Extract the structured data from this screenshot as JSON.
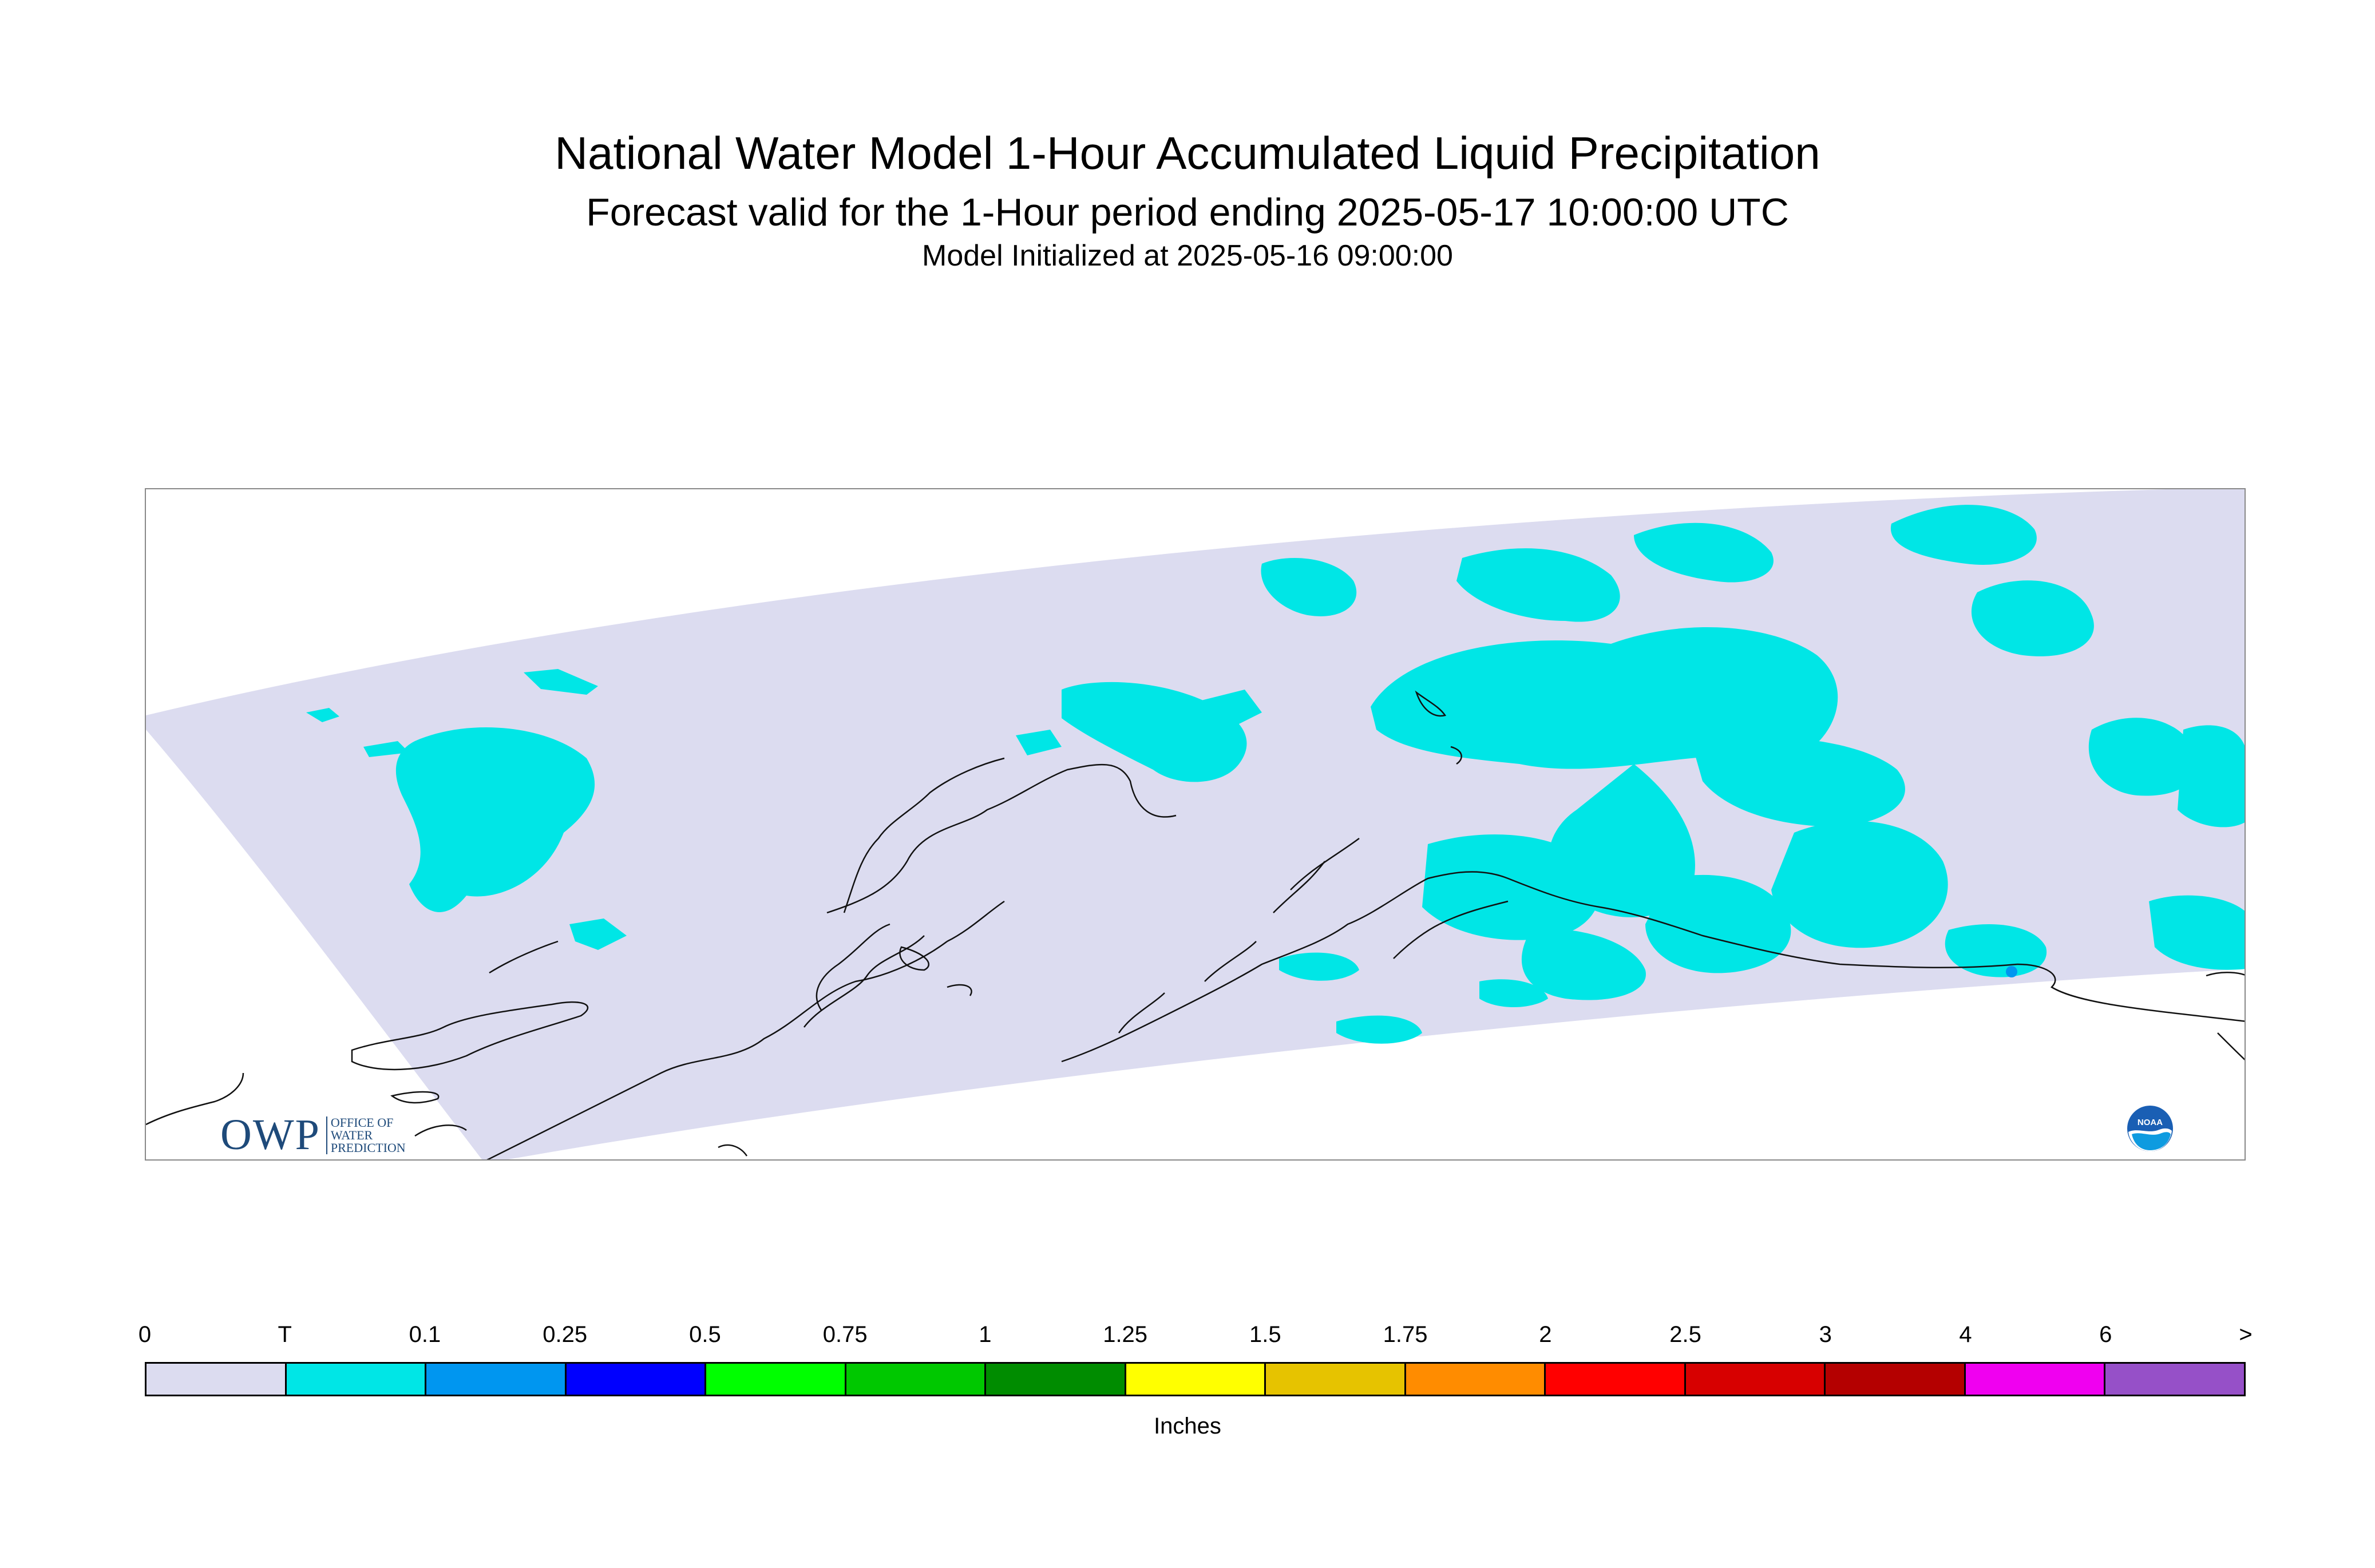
{
  "title": "National Water Model 1-Hour Accumulated Liquid Precipitation",
  "subtitle": "Forecast valid for the 1-Hour period ending 2025-05-17 10:00:00 UTC",
  "init_line": "Model Initialized at 2025-05-16 09:00:00",
  "owp_logo": {
    "mark": "OWP",
    "lines": [
      "OFFICE OF",
      "WATER",
      "PREDICTION"
    ]
  },
  "noaa_logo": {
    "text": "NOAA",
    "color": "#1a5fb4"
  },
  "colors": {
    "domain_fill": "#dcdcf0",
    "trace_fill": "#00e6e6",
    "coast_line": "#111111"
  },
  "legend": {
    "units": "Inches",
    "labels": [
      "0",
      "T",
      "0.1",
      "0.25",
      "0.5",
      "0.75",
      "1",
      "1.25",
      "1.5",
      "1.75",
      "2",
      "2.5",
      "3",
      "4",
      "6",
      ">"
    ],
    "colors": [
      "#dcdcf0",
      "#00e6e6",
      "#0096f0",
      "#0000ff",
      "#00ff00",
      "#00c800",
      "#008c00",
      "#ffff00",
      "#e6c300",
      "#ff8c00",
      "#ff0000",
      "#d70000",
      "#b40000",
      "#f000f0",
      "#9650c8"
    ]
  }
}
